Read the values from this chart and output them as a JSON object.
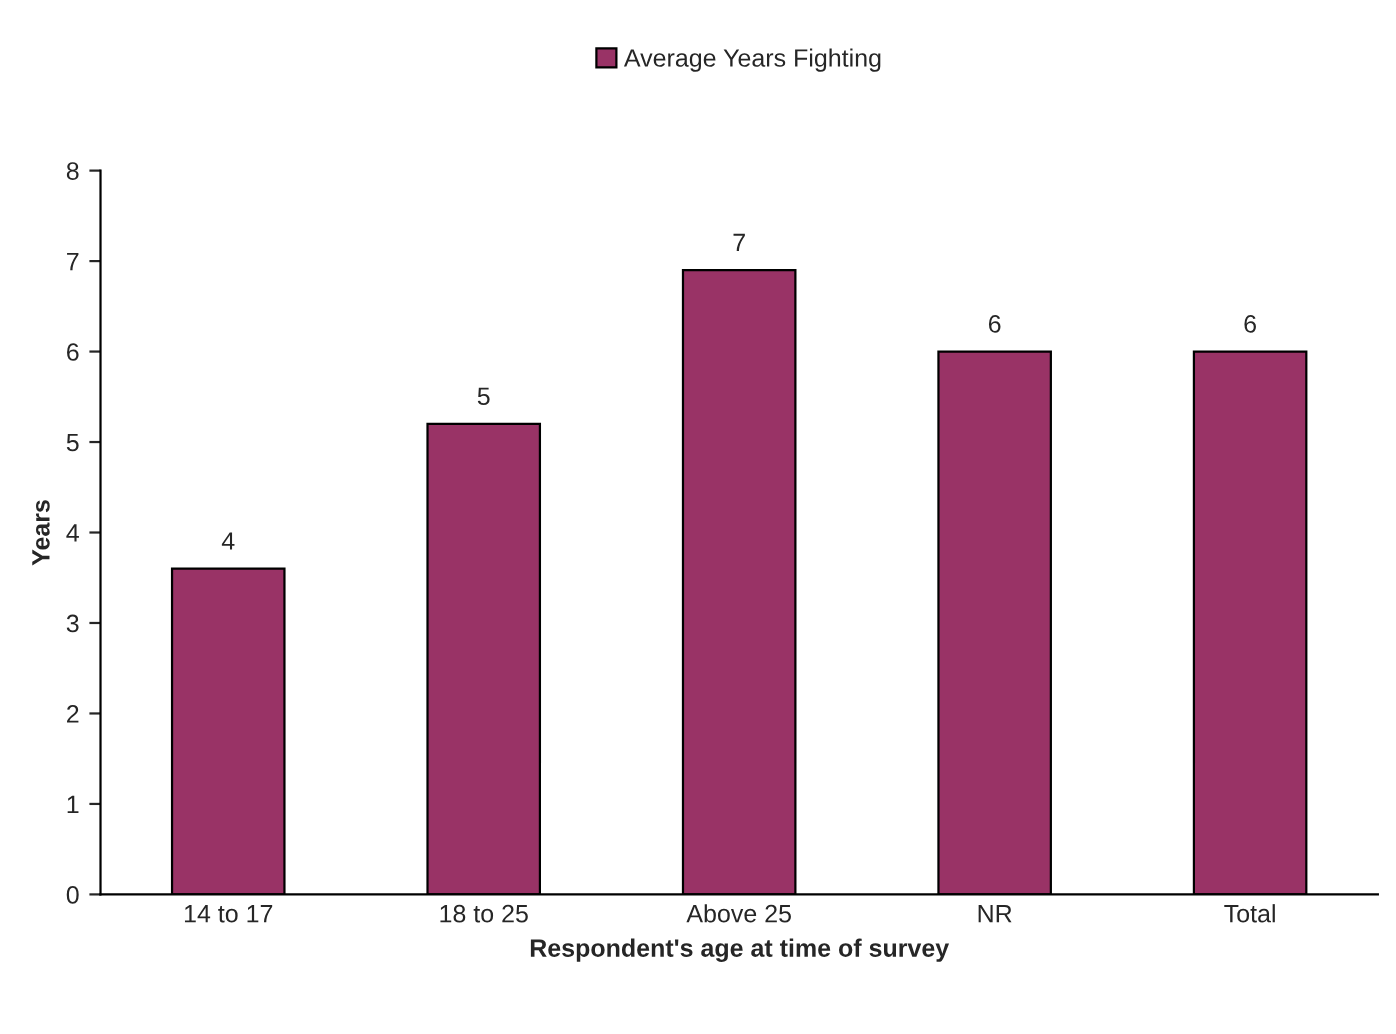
{
  "chart_data": {
    "type": "bar",
    "categories": [
      "14 to 17",
      "18 to 25",
      "Above 25",
      "NR",
      "Total"
    ],
    "series": [
      {
        "name": "Average Years Fighting",
        "color": "#993366",
        "values": [
          3.6,
          5.2,
          6.9,
          6.0,
          6.0
        ],
        "value_labels": [
          "4",
          "5",
          "7",
          "6",
          "6"
        ]
      }
    ],
    "xlabel": "Respondent's age at time of survey",
    "ylabel": "Years",
    "ylim": [
      0,
      8
    ],
    "yticks": [
      0,
      1,
      2,
      3,
      4,
      5,
      6,
      7,
      8
    ],
    "grid": false,
    "legend": "top"
  }
}
